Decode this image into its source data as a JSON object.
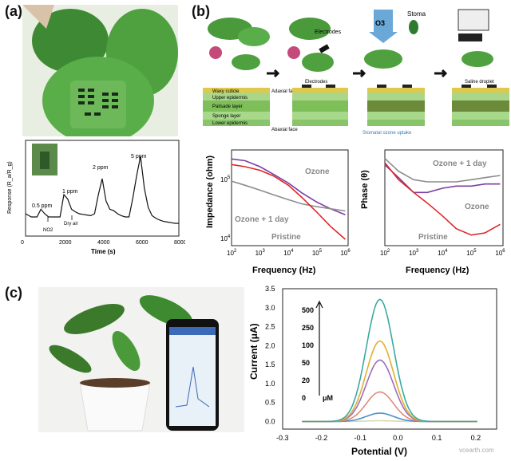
{
  "panels": {
    "a": {
      "label": "(a)",
      "plot": {
        "ylabel": "Response (R_a/R_g)",
        "xlabel": "Time (s)",
        "x_ticks": [
          "0",
          "2000",
          "4000",
          "6000",
          "8000"
        ],
        "annotations": [
          "0.5 ppm",
          "1 ppm",
          "2 ppm",
          "5 ppm",
          "NO2",
          "Dry air"
        ]
      }
    },
    "b": {
      "label": "(b)",
      "schematic": {
        "labels": [
          "Waxy cuticle",
          "Upper epidermis",
          "Palisade layer",
          "Sponge layer",
          "Lower epidermis",
          "Adaxial face",
          "Abaxial face",
          "Electrodes",
          "Electrodes",
          "O3",
          "Stoma",
          "Stomatal ozone uptake",
          "Saline droplet"
        ]
      },
      "impedance": {
        "ylabel": "Impedance (ohm)",
        "xlabel": "Frequency (Hz)",
        "series_labels": [
          "Ozone",
          "Ozone + 1 day",
          "Pristine"
        ]
      },
      "phase": {
        "ylabel": "Phase (θ)",
        "xlabel": "Frequency (Hz)",
        "series_labels": [
          "Ozone + 1 day",
          "Ozone",
          "Pristine"
        ]
      }
    },
    "c": {
      "label": "(c)",
      "watermark": "vcearth.com"
    }
  },
  "colors": {
    "ozone": "#7b3fa0",
    "ozone1day": "#8c8c8c",
    "pristine": "#e0262a",
    "leaf": "#3f9a3a"
  },
  "chart_data": [
    {
      "type": "line",
      "title": "",
      "xlabel": "Time (s)",
      "ylabel": "Response (R_a/R_g)",
      "xlim": [
        0,
        8000
      ],
      "series": [
        {
          "x": [
            0,
            300,
            600,
            800,
            1000,
            1200,
            1500,
            1800,
            2000,
            2200,
            2400,
            2600,
            2800,
            3000,
            3200,
            3400,
            3600,
            3800,
            4000,
            4200,
            4400,
            4600,
            4800,
            5000,
            5200,
            5400,
            5600,
            5800,
            6000,
            6200,
            6400,
            6600,
            6800,
            7000,
            7200,
            7400,
            7600,
            7800,
            8000
          ],
          "values": [
            1.05,
            1.0,
            1.0,
            1.12,
            1.05,
            1.0,
            1.0,
            1.0,
            1.35,
            1.28,
            1.12,
            1.08,
            1.05,
            1.04,
            1.03,
            1.02,
            1.05,
            1.35,
            1.6,
            1.25,
            1.12,
            1.1,
            1.05,
            1.02,
            1.0,
            1.0,
            1.3,
            1.65,
            1.95,
            1.45,
            1.15,
            1.02,
            0.98,
            0.95,
            0.93,
            0.92,
            0.91,
            0.9,
            0.9
          ]
        }
      ]
    },
    {
      "type": "line",
      "title": "",
      "xlabel": "Frequency (Hz)",
      "ylabel": "Impedance (ohm)",
      "log_x": true,
      "log_y": true,
      "x_tick_labels": [
        "10^2",
        "10^3",
        "10^4",
        "10^5",
        "10^6"
      ],
      "y_tick_labels": [
        "10^4",
        "10^5"
      ],
      "series": [
        {
          "name": "Ozone",
          "x": [
            100,
            300,
            1000,
            3000,
            10000,
            30000,
            100000,
            300000,
            1000000
          ],
          "values": [
            160000,
            150000,
            120000,
            90000,
            65000,
            45000,
            32000,
            25000,
            20000
          ]
        },
        {
          "name": "Ozone + 1 day",
          "x": [
            100,
            300,
            1000,
            3000,
            10000,
            30000,
            100000,
            300000,
            1000000
          ],
          "values": [
            70000,
            60000,
            50000,
            42000,
            35000,
            30000,
            27000,
            25000,
            23000
          ]
        },
        {
          "name": "Pristine",
          "x": [
            100,
            300,
            1000,
            3000,
            10000,
            30000,
            100000,
            300000,
            1000000
          ],
          "values": [
            130000,
            120000,
            105000,
            85000,
            60000,
            38000,
            22000,
            13000,
            8000
          ]
        }
      ]
    },
    {
      "type": "line",
      "title": "",
      "xlabel": "Frequency (Hz)",
      "ylabel": "Phase (θ)",
      "log_x": true,
      "x_tick_labels": [
        "10^2",
        "10^3",
        "10^4",
        "10^5",
        "10^6"
      ],
      "series": [
        {
          "name": "Ozone + 1 day",
          "x": [
            100,
            300,
            1000,
            3000,
            10000,
            30000,
            100000,
            300000,
            1000000
          ],
          "values": [
            -4,
            -10,
            -14,
            -15,
            -15,
            -15,
            -14,
            -13,
            -12
          ]
        },
        {
          "name": "Ozone",
          "x": [
            100,
            300,
            1000,
            3000,
            10000,
            30000,
            100000,
            300000,
            1000000
          ],
          "values": [
            -7,
            -13,
            -20,
            -20,
            -18,
            -17,
            -17,
            -16,
            -16
          ]
        },
        {
          "name": "Pristine",
          "x": [
            100,
            300,
            1000,
            3000,
            10000,
            30000,
            100000,
            300000,
            1000000
          ],
          "values": [
            -6,
            -14,
            -20,
            -25,
            -31,
            -37,
            -40,
            -39,
            -35
          ]
        }
      ]
    },
    {
      "type": "line",
      "title": "",
      "xlabel": "Potential (V)",
      "ylabel": "Current (μA)",
      "xlim": [
        -0.3,
        0.25
      ],
      "ylim": [
        -0.2,
        3.5
      ],
      "x_tick_labels": [
        "-0.3",
        "-0.2",
        "-0.1",
        "0.0",
        "0.1",
        "0.2"
      ],
      "y_tick_labels": [
        "0.0",
        "0.5",
        "1.0",
        "1.5",
        "2.0",
        "2.5",
        "3.0",
        "3.5"
      ],
      "annotations": [
        "500",
        "250",
        "100",
        "50",
        "20",
        "0",
        "μM"
      ],
      "series": [
        {
          "name": "0",
          "color": "#d9d9b0",
          "peak": 0.02,
          "center": -0.05
        },
        {
          "name": "20",
          "color": "#4a90c8",
          "peak": 0.22,
          "center": -0.05
        },
        {
          "name": "50",
          "color": "#e08a7a",
          "peak": 0.78,
          "center": -0.05
        },
        {
          "name": "100",
          "color": "#9a70b8",
          "peak": 1.62,
          "center": -0.05
        },
        {
          "name": "250",
          "color": "#e0b030",
          "peak": 2.12,
          "center": -0.05
        },
        {
          "name": "500",
          "color": "#3aaaa0",
          "peak": 3.22,
          "center": -0.05
        }
      ]
    }
  ]
}
